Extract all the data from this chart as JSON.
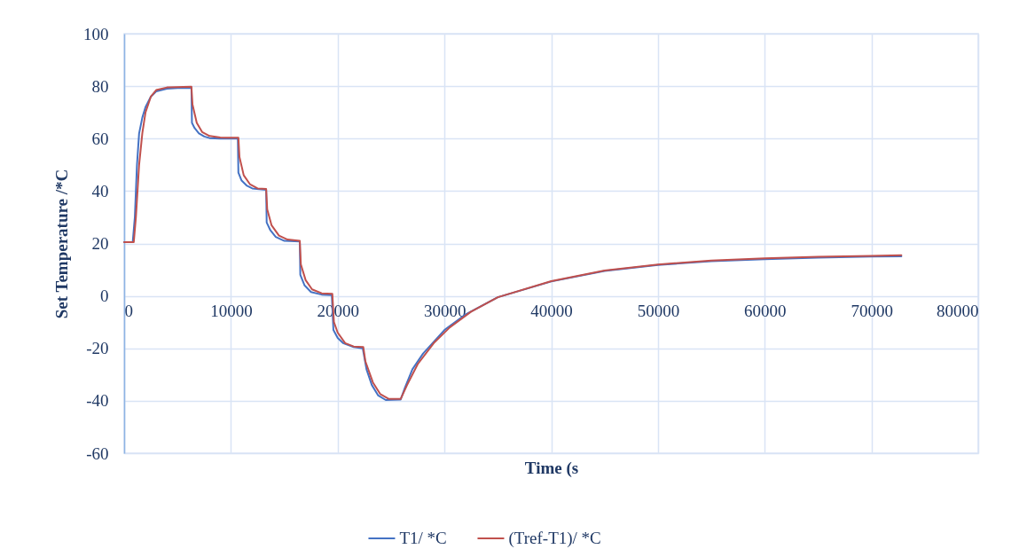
{
  "chart_data": {
    "type": "line",
    "xlabel": "Time (s",
    "ylabel": "Set Temperature /*C",
    "xlim": [
      0,
      80000
    ],
    "xticks": [
      0,
      10000,
      20000,
      30000,
      40000,
      50000,
      60000,
      70000,
      80000
    ],
    "ylim": [
      -60,
      100
    ],
    "yticks": [
      -60,
      -40,
      -20,
      0,
      20,
      40,
      60,
      80,
      100
    ],
    "grid": true,
    "legend": "bottom",
    "series": [
      {
        "name": "T1/ *C",
        "color": "#4472c4",
        "x": [
          0,
          800,
          1000,
          1200,
          1400,
          1700,
          2000,
          2500,
          3000,
          4000,
          5000,
          6200,
          6300,
          6350,
          6600,
          7000,
          7500,
          8000,
          9000,
          10650,
          10700,
          11000,
          11500,
          12000,
          13300,
          13350,
          13700,
          14200,
          15000,
          16450,
          16500,
          16900,
          17500,
          18500,
          19450,
          19600,
          20000,
          20500,
          21500,
          22350,
          22700,
          23200,
          23800,
          24500,
          25900,
          26300,
          27000,
          28000,
          30000,
          32000,
          35000,
          40000,
          45000,
          50000,
          55000,
          60000,
          65000,
          70000,
          72800
        ],
        "values": [
          20.5,
          20.5,
          30,
          50,
          62,
          68,
          72,
          76,
          78,
          79,
          79.3,
          79.3,
          79.5,
          66,
          64,
          62,
          60.8,
          60.2,
          60,
          60,
          47,
          44,
          42,
          41,
          40.5,
          28,
          25,
          22.5,
          21,
          20.8,
          8,
          4,
          1.5,
          0.5,
          0.3,
          -13,
          -16,
          -18,
          -19.5,
          -20,
          -28,
          -34,
          -38,
          -39.7,
          -39.5,
          -35,
          -28,
          -22,
          -13,
          -7,
          -0.5,
          5.5,
          9.5,
          11.8,
          13.2,
          14,
          14.6,
          15,
          15.1
        ]
      },
      {
        "name": "(Tref-T1)/ *C",
        "color": "#c0504d",
        "x": [
          0,
          900,
          1100,
          1400,
          1700,
          2000,
          2500,
          3000,
          4000,
          6300,
          6400,
          6800,
          7300,
          8000,
          9000,
          10700,
          10800,
          11200,
          11800,
          12500,
          13300,
          13400,
          13800,
          14500,
          15300,
          16450,
          16550,
          17000,
          17600,
          18500,
          19500,
          19650,
          20000,
          20700,
          21500,
          22400,
          22600,
          23300,
          24000,
          24800,
          25900,
          26500,
          27500,
          29000,
          30500,
          32500,
          35000,
          40000,
          45000,
          50000,
          55000,
          60000,
          65000,
          70000,
          72800
        ],
        "values": [
          20.5,
          20.5,
          30,
          50,
          62,
          70,
          76,
          78.5,
          79.5,
          79.8,
          73,
          66,
          62.5,
          61,
          60.4,
          60.3,
          53,
          46,
          42.5,
          41,
          40.8,
          33,
          27,
          23,
          21.5,
          21,
          12,
          6,
          2.5,
          1,
          0.8,
          -10,
          -14,
          -18,
          -19.3,
          -19.5,
          -25,
          -33,
          -37.5,
          -39.3,
          -39.3,
          -34,
          -26,
          -18,
          -12,
          -6,
          -0.5,
          5.6,
          9.7,
          12,
          13.5,
          14.3,
          14.9,
          15.3,
          15.5
        ]
      }
    ]
  }
}
